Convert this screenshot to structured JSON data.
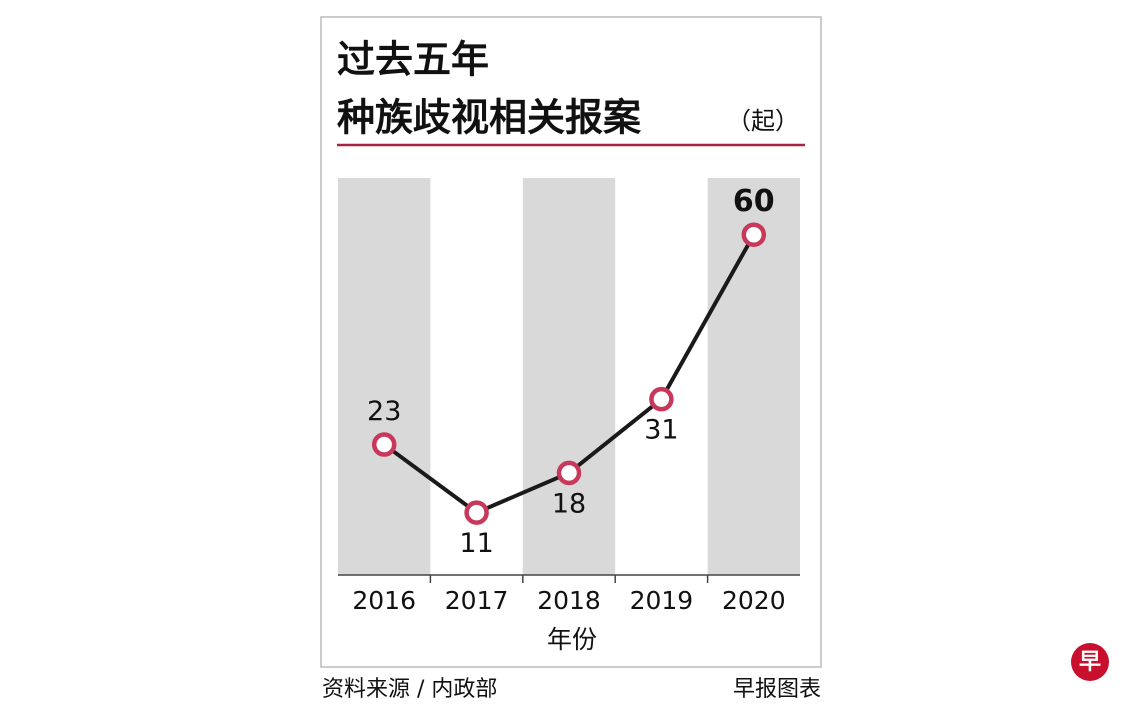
{
  "chart_data": {
    "type": "line",
    "title": "过去五年",
    "subtitle": "种族歧视相关报案",
    "unit": "（起）",
    "categories": [
      "2016",
      "2017",
      "2018",
      "2019",
      "2020"
    ],
    "values": [
      23,
      11,
      18,
      31,
      60
    ],
    "line_color": "#1a1a1a",
    "marker_color": "#c8385a",
    "band_color": "#d9d9d9",
    "ylim": [
      0,
      70
    ],
    "x_label": "年份"
  },
  "footer": {
    "source": "资料来源 / 内政部",
    "credit": "早报图表",
    "logo": "早"
  }
}
